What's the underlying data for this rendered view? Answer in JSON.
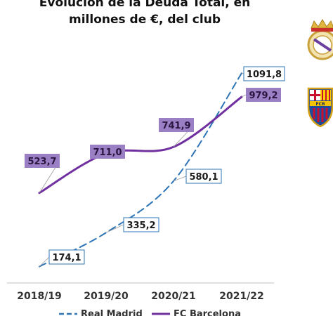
{
  "chart_data": {
    "type": "line",
    "title_lines": [
      "Evolución de la Deuda Total, en",
      "millones de €, del club"
    ],
    "categories": [
      "2018/19",
      "2019/20",
      "2020/21",
      "2021/22"
    ],
    "ylim": [
      0,
      1150
    ],
    "grid": false,
    "legend_position": "bottom",
    "series": [
      {
        "name": "Real Madrid",
        "values": [
          174.1,
          335.2,
          580.1,
          1091.8
        ],
        "labels": [
          "174,1",
          "335,2",
          "580,1",
          "1091,8"
        ],
        "color": "#2e75b6",
        "line_style": "dashed",
        "label_style": "outlined"
      },
      {
        "name": "FC Barcelona",
        "values": [
          523.7,
          711.0,
          741.9,
          979.2
        ],
        "labels": [
          "523,7",
          "711,0",
          "741,9",
          "979,2"
        ],
        "color": "#7030a0",
        "line_style": "solid",
        "label_style": "filled"
      }
    ]
  },
  "colors": {
    "label_fill": "#9b7fc4",
    "label_outline": "#2e75b6",
    "axis_line": "#bfbfbf"
  },
  "icons": [
    "real-madrid-crest-icon",
    "fc-barcelona-crest-icon"
  ]
}
